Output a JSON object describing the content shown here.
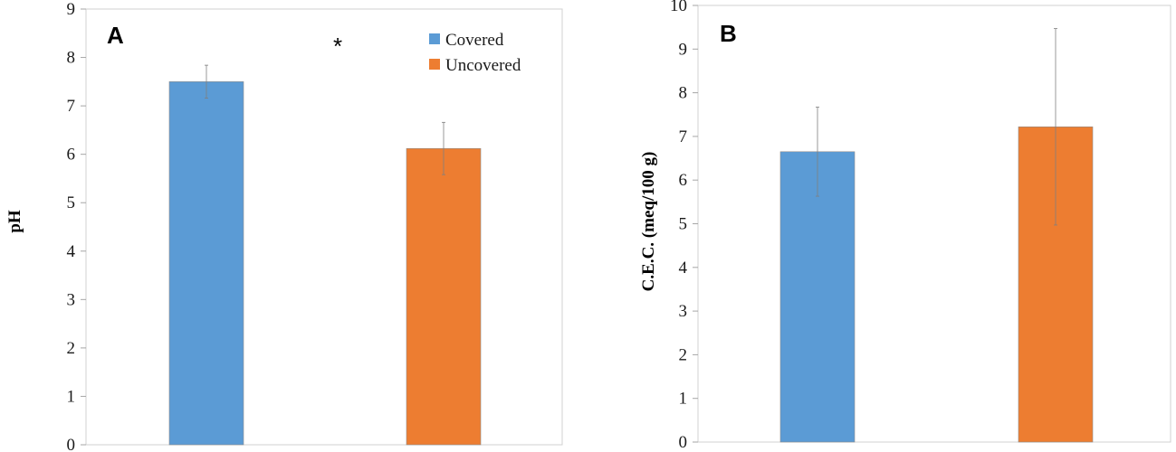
{
  "colors": {
    "covered": "#5B9BD5",
    "uncovered": "#ED7D31",
    "axis": "#a6a6a6",
    "error": "#7f7f7f"
  },
  "legend": [
    {
      "label": "Covered",
      "color": "#5B9BD5"
    },
    {
      "label": "Uncovered",
      "color": "#ED7D31"
    }
  ],
  "chart_data": [
    {
      "type": "bar",
      "panel_label": "A",
      "title": "",
      "xlabel": "",
      "ylabel": "pH",
      "ylim": [
        0,
        9
      ],
      "yticks": [
        0,
        1,
        2,
        3,
        4,
        5,
        6,
        7,
        8,
        9
      ],
      "categories": [
        "Covered",
        "Uncovered"
      ],
      "values": [
        7.5,
        6.12
      ],
      "errors": [
        0.34,
        0.54
      ],
      "annotation": "*",
      "legend_position": "top-right"
    },
    {
      "type": "bar",
      "panel_label": "B",
      "title": "",
      "xlabel": "",
      "ylabel": "C.E.C. (meq/100 g)",
      "ylim": [
        0,
        10
      ],
      "yticks": [
        0,
        1,
        2,
        3,
        4,
        5,
        6,
        7,
        8,
        9,
        10
      ],
      "categories": [
        "Covered",
        "Uncovered"
      ],
      "values": [
        6.65,
        7.22
      ],
      "errors": [
        1.02,
        2.25
      ]
    }
  ]
}
